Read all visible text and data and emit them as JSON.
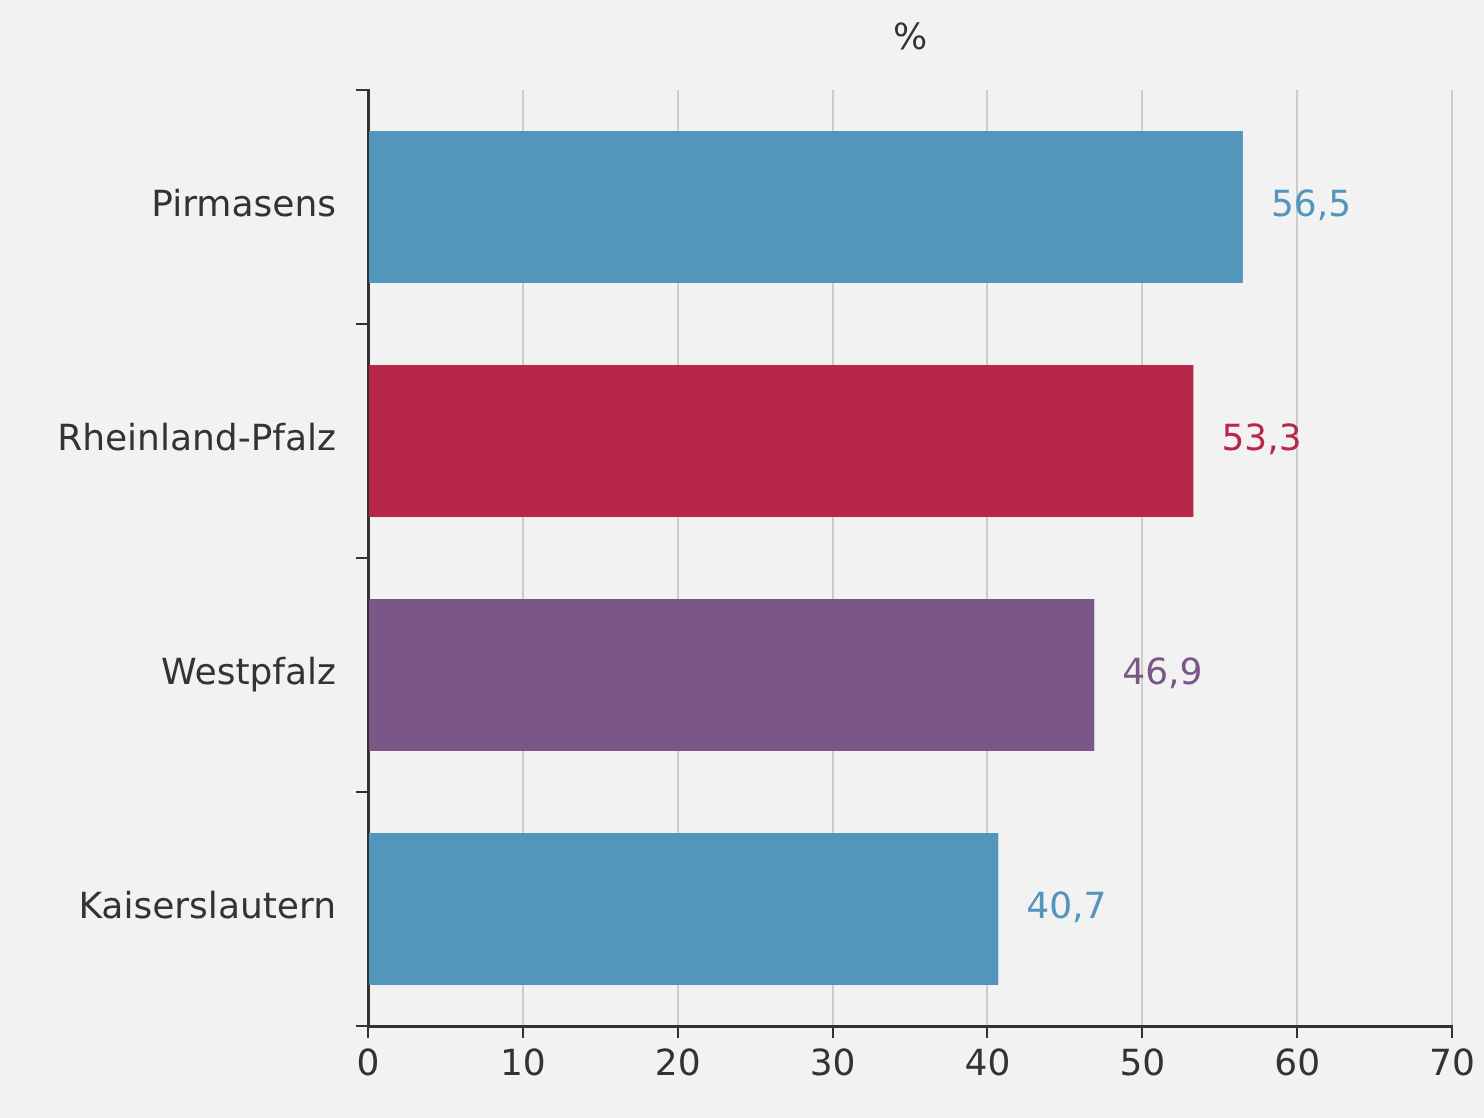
{
  "chart_data": {
    "type": "bar",
    "orientation": "horizontal",
    "xlabel": "%",
    "categories": [
      "Pirmasens",
      "Rheinland-Pfalz",
      "Westpfalz",
      "Kaiserslautern"
    ],
    "values": [
      56.5,
      53.3,
      46.9,
      40.7
    ],
    "colors": [
      "#5296bb",
      "#b8264a",
      "#7a5787",
      "#5296bb"
    ],
    "value_labels": [
      "56,5",
      "53,3",
      "46,9",
      "40,7"
    ],
    "xlim": [
      0,
      70
    ],
    "xticks": [
      0,
      10,
      20,
      30,
      40,
      50,
      60,
      70
    ],
    "grid": "x",
    "legend": false
  }
}
